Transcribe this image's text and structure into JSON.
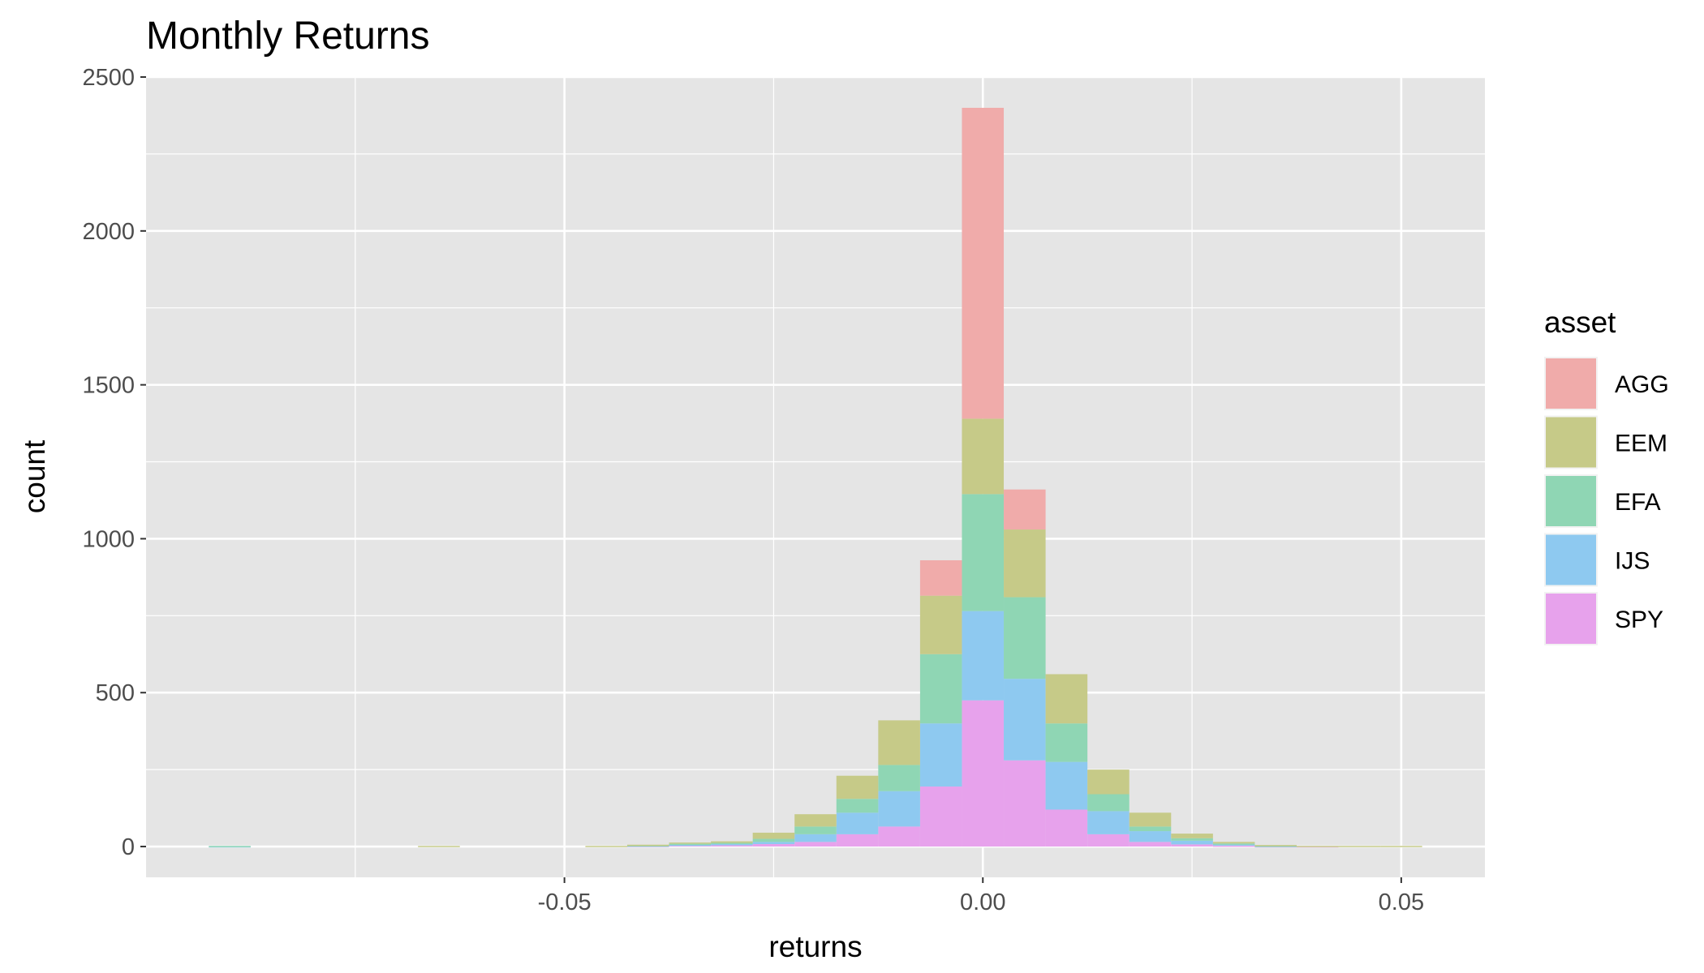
{
  "chart_data": {
    "type": "bar",
    "title": "Monthly Returns",
    "xlabel": "returns",
    "ylabel": "count",
    "xlim": [
      -0.1,
      0.06
    ],
    "ylim": [
      -100,
      2500
    ],
    "x_ticks": [
      -0.05,
      0.0,
      0.05
    ],
    "x_tick_labels": [
      "-0.05",
      "0.00",
      "0.05"
    ],
    "y_ticks": [
      0,
      500,
      1000,
      1500,
      2000,
      2500
    ],
    "y_tick_labels": [
      "0",
      "500",
      "1000",
      "1500",
      "2000",
      "2500"
    ],
    "grid": true,
    "stacked": true,
    "legend": {
      "title": "asset",
      "position": "right"
    },
    "bin_width": 0.005,
    "x": [
      -0.09,
      -0.065,
      -0.045,
      -0.04,
      -0.035,
      -0.03,
      -0.025,
      -0.02,
      -0.015,
      -0.01,
      -0.005,
      0.0,
      0.005,
      0.01,
      0.015,
      0.02,
      0.025,
      0.03,
      0.035,
      0.04,
      0.045,
      0.05
    ],
    "series": [
      {
        "name": "SPY",
        "color": "#E7A2EC",
        "values": [
          0,
          0,
          0,
          2,
          4,
          5,
          8,
          15,
          40,
          65,
          195,
          475,
          280,
          120,
          40,
          15,
          7,
          3,
          1,
          1,
          0,
          0
        ]
      },
      {
        "name": "IJS",
        "color": "#8EC9F0",
        "values": [
          1,
          0,
          0,
          1,
          2,
          3,
          7,
          25,
          70,
          115,
          205,
          290,
          265,
          155,
          75,
          35,
          12,
          4,
          1,
          0,
          0,
          0
        ]
      },
      {
        "name": "EFA",
        "color": "#8FD6B4",
        "values": [
          1,
          0,
          0,
          1,
          3,
          4,
          10,
          25,
          45,
          85,
          225,
          380,
          265,
          125,
          55,
          15,
          8,
          3,
          1,
          0,
          0,
          0
        ]
      },
      {
        "name": "EEM",
        "color": "#C6CA88",
        "values": [
          0,
          2,
          2,
          2,
          4,
          5,
          20,
          40,
          75,
          145,
          190,
          245,
          220,
          160,
          80,
          45,
          15,
          5,
          2,
          1,
          2,
          2
        ]
      },
      {
        "name": "AGG",
        "color": "#F0ABAA",
        "values": [
          0,
          0,
          0,
          0,
          0,
          0,
          0,
          0,
          0,
          0,
          115,
          1010,
          130,
          0,
          0,
          0,
          0,
          0,
          0,
          0,
          0,
          0
        ]
      }
    ]
  }
}
